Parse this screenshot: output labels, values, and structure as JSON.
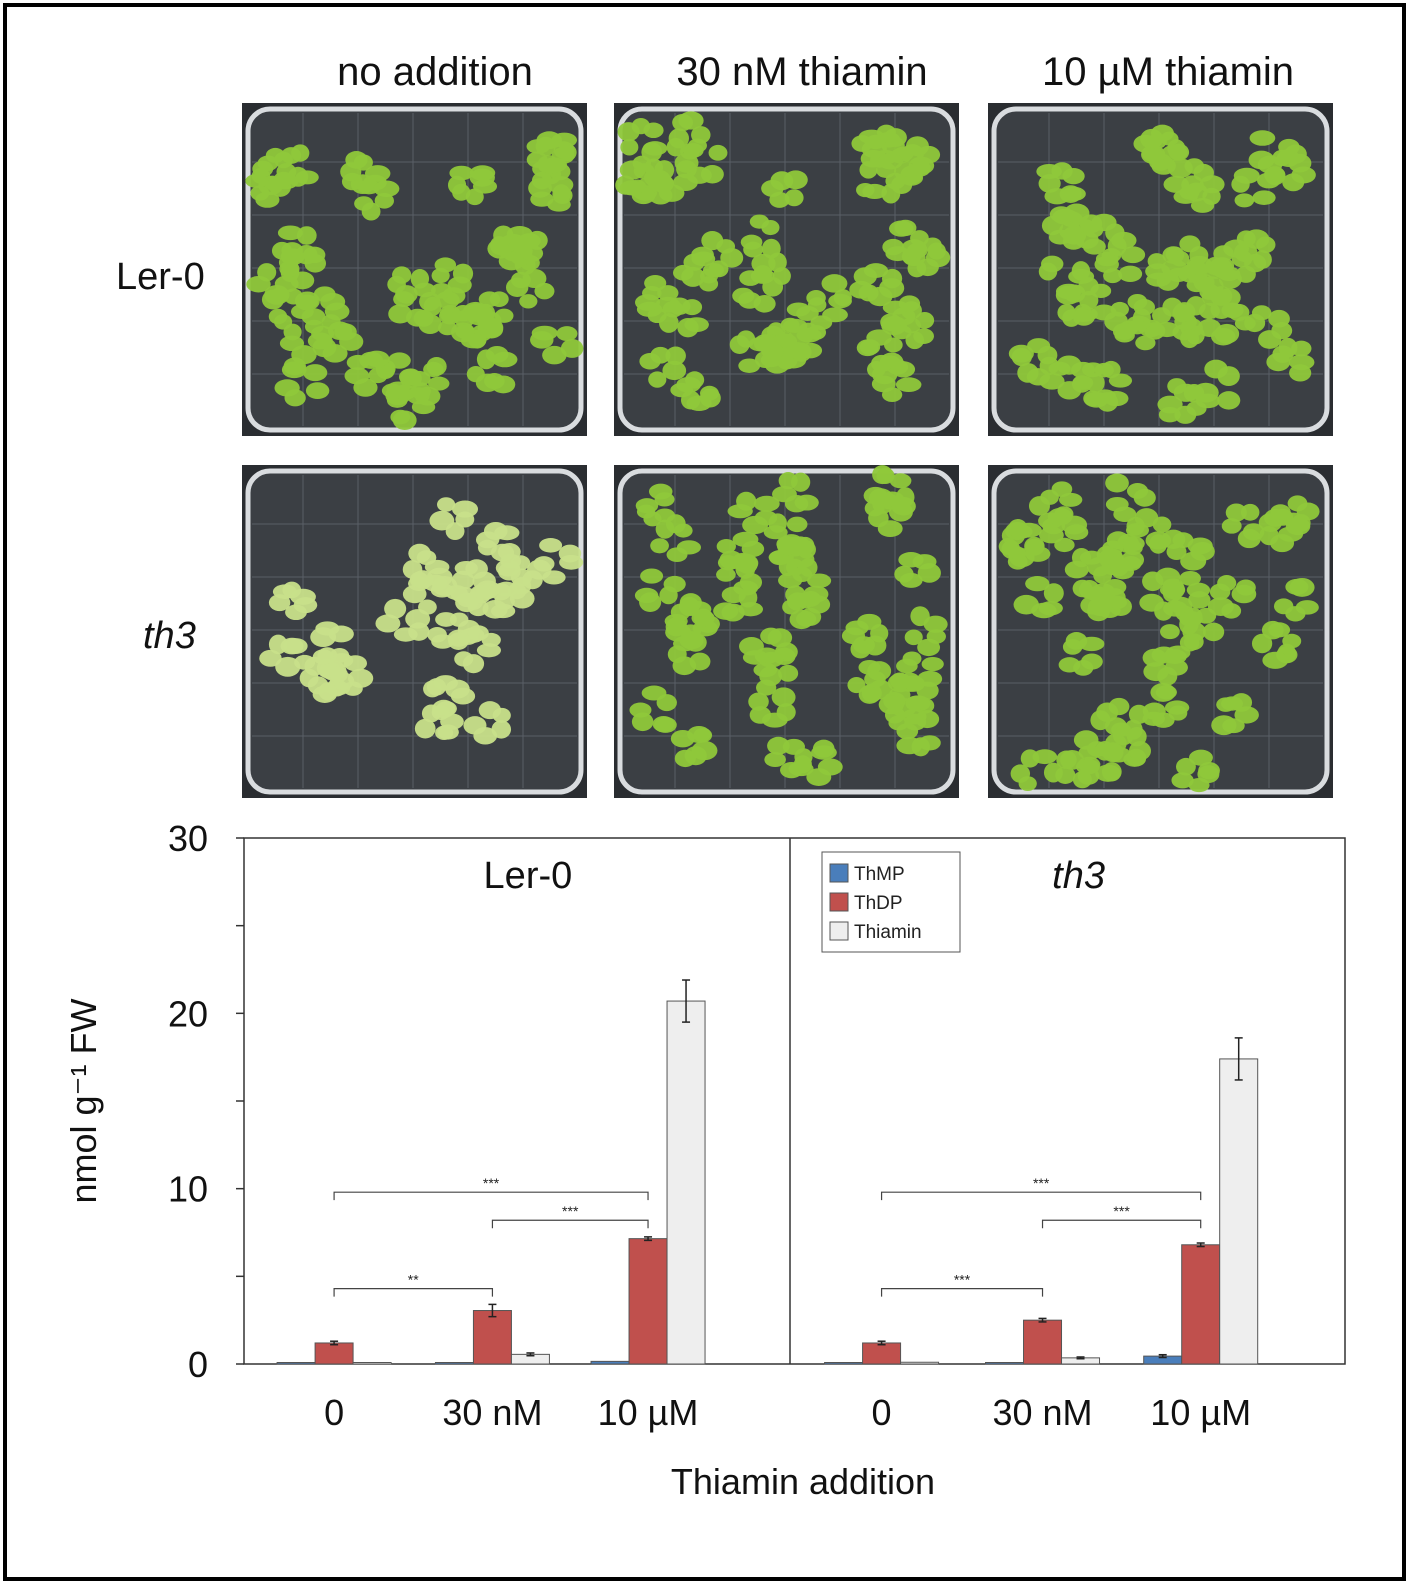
{
  "figure": {
    "column_titles": [
      "no addition",
      "30 nM thiamin",
      "10 µM thiamin"
    ],
    "row_labels": [
      {
        "text": "Ler-0",
        "italic": false
      },
      {
        "text": "th3",
        "italic": true
      }
    ],
    "plates": [
      {
        "row": 0,
        "col": 0,
        "condition": "healthy-green"
      },
      {
        "row": 0,
        "col": 1,
        "condition": "healthy-green"
      },
      {
        "row": 0,
        "col": 2,
        "condition": "healthy-green"
      },
      {
        "row": 1,
        "col": 0,
        "condition": "pale-yellow"
      },
      {
        "row": 1,
        "col": 1,
        "condition": "healthy-green"
      },
      {
        "row": 1,
        "col": 2,
        "condition": "healthy-green"
      }
    ],
    "plant_colors": {
      "healthy-green": "#8fc83a",
      "pale-yellow": "#c8e08a"
    }
  },
  "chart_data": {
    "type": "bar",
    "ylabel": "nmol g⁻¹ FW",
    "xlabel": "Thiamin addition",
    "ylim": [
      0,
      30
    ],
    "yticks": [
      0,
      10,
      20,
      30
    ],
    "categories": [
      "0",
      "30 nM",
      "10 µM"
    ],
    "legend": {
      "placement": "top-left of right panel"
    },
    "series_colors": {
      "ThMP": "#4a7ebb",
      "ThDP": "#c0504d",
      "Thiamin": "#eeeeee"
    },
    "panels": [
      {
        "title": "Ler-0",
        "italic": false,
        "series": [
          {
            "name": "ThMP",
            "values": [
              0.0,
              0.05,
              0.15
            ],
            "errors": [
              0,
              0,
              0
            ]
          },
          {
            "name": "ThDP",
            "values": [
              1.2,
              3.05,
              7.15
            ],
            "errors": [
              0.1,
              0.35,
              0.1
            ]
          },
          {
            "name": "Thiamin",
            "values": [
              0.05,
              0.55,
              20.7
            ],
            "errors": [
              0,
              0.08,
              1.2
            ]
          }
        ],
        "significance": [
          {
            "from": 0,
            "to": 1,
            "label": "**",
            "y": 4.3
          },
          {
            "from": 1,
            "to": 2,
            "label": "***",
            "y": 8.2
          },
          {
            "from": 0,
            "to": 2,
            "label": "***",
            "y": 9.8
          }
        ]
      },
      {
        "title": "th3",
        "italic": true,
        "series": [
          {
            "name": "ThMP",
            "values": [
              0.05,
              0.05,
              0.45
            ],
            "errors": [
              0,
              0,
              0.08
            ]
          },
          {
            "name": "ThDP",
            "values": [
              1.2,
              2.5,
              6.8
            ],
            "errors": [
              0.1,
              0.1,
              0.1
            ]
          },
          {
            "name": "Thiamin",
            "values": [
              0.1,
              0.35,
              17.4
            ],
            "errors": [
              0,
              0.05,
              1.2
            ]
          }
        ],
        "significance": [
          {
            "from": 0,
            "to": 1,
            "label": "***",
            "y": 4.3
          },
          {
            "from": 1,
            "to": 2,
            "label": "***",
            "y": 8.2
          },
          {
            "from": 0,
            "to": 2,
            "label": "***",
            "y": 9.8
          }
        ]
      }
    ]
  }
}
